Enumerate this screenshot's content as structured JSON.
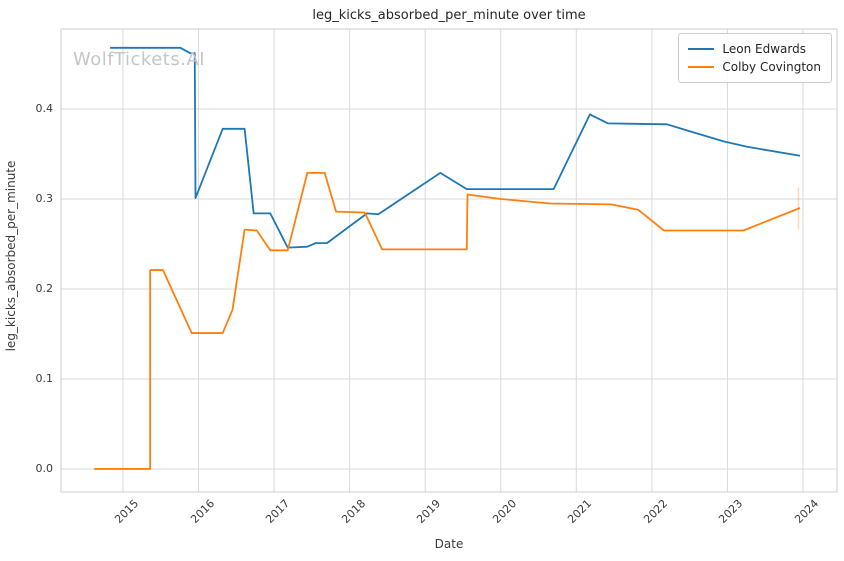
{
  "figure": {
    "title": "leg_kicks_absorbed_per_minute over time",
    "watermark": "WolfTickets.AI",
    "xlabel": "Date",
    "ylabel": "leg_kicks_absorbed_per_minute"
  },
  "legend": {
    "position": "upper right",
    "items": [
      {
        "label": "Leon Edwards",
        "color": "#1f77b4"
      },
      {
        "label": "Colby Covington",
        "color": "#ff7f0e"
      }
    ]
  },
  "style": {
    "background": "#ffffff",
    "grid_color": "#d9d9d9",
    "spine_color": "#cccccc",
    "text_color": "#3a3a3a",
    "title_color": "#262626",
    "watermark_color": "#c6c6c6",
    "line_width": 1.8
  },
  "chart_data": {
    "type": "line",
    "title": "leg_kicks_absorbed_per_minute over time",
    "xlabel": "Date",
    "ylabel": "leg_kicks_absorbed_per_minute",
    "grid": true,
    "legend_position": "upper right",
    "xlim": [
      2014.18,
      2024.45
    ],
    "ylim": [
      -0.0256,
      0.4889
    ],
    "x_ticks": [
      2015,
      2016,
      2017,
      2018,
      2019,
      2020,
      2021,
      2022,
      2023,
      2024
    ],
    "x_tick_labels": [
      "2015",
      "2016",
      "2017",
      "2018",
      "2019",
      "2020",
      "2021",
      "2022",
      "2023",
      "2024"
    ],
    "y_ticks": [
      0.0,
      0.1,
      0.2,
      0.3,
      0.4
    ],
    "y_tick_labels": [
      "0.0",
      "0.1",
      "0.2",
      "0.3",
      "0.4"
    ],
    "series": [
      {
        "name": "Leon Edwards",
        "color": "#1f77b4",
        "points": [
          [
            2014.83,
            0.468
          ],
          [
            2015.76,
            0.468
          ],
          [
            2015.89,
            0.462
          ],
          [
            2015.95,
            0.462
          ],
          [
            2015.96,
            0.301
          ],
          [
            2016.32,
            0.378
          ],
          [
            2016.61,
            0.378
          ],
          [
            2016.73,
            0.284
          ],
          [
            2016.95,
            0.284
          ],
          [
            2017.18,
            0.246
          ],
          [
            2017.44,
            0.247
          ],
          [
            2017.55,
            0.251
          ],
          [
            2017.7,
            0.251
          ],
          [
            2018.23,
            0.284
          ],
          [
            2018.38,
            0.283
          ],
          [
            2019.2,
            0.329
          ],
          [
            2019.55,
            0.311
          ],
          [
            2020.7,
            0.311
          ],
          [
            2021.18,
            0.394
          ],
          [
            2021.42,
            0.384
          ],
          [
            2022.2,
            0.383
          ],
          [
            2022.55,
            0.374
          ],
          [
            2022.95,
            0.364
          ],
          [
            2023.26,
            0.358
          ],
          [
            2023.96,
            0.348
          ]
        ]
      },
      {
        "name": "Colby Covington",
        "color": "#ff7f0e",
        "points": [
          [
            2014.62,
            0.0
          ],
          [
            2015.36,
            0.0
          ],
          [
            2015.36,
            0.221
          ],
          [
            2015.53,
            0.221
          ],
          [
            2015.91,
            0.151
          ],
          [
            2016.32,
            0.151
          ],
          [
            2016.45,
            0.177
          ],
          [
            2016.61,
            0.266
          ],
          [
            2016.77,
            0.265
          ],
          [
            2016.95,
            0.243
          ],
          [
            2017.18,
            0.243
          ],
          [
            2017.44,
            0.329
          ],
          [
            2017.67,
            0.329
          ],
          [
            2017.82,
            0.286
          ],
          [
            2018.2,
            0.285
          ],
          [
            2018.43,
            0.244
          ],
          [
            2019.55,
            0.244
          ],
          [
            2019.56,
            0.305
          ],
          [
            2020.0,
            0.3
          ],
          [
            2020.65,
            0.295
          ],
          [
            2021.46,
            0.294
          ],
          [
            2021.82,
            0.288
          ],
          [
            2022.16,
            0.265
          ],
          [
            2023.21,
            0.265
          ],
          [
            2023.96,
            0.29
          ]
        ]
      }
    ],
    "annotations": [
      {
        "type": "vertical-segment",
        "x": 2023.94,
        "y_from": 0.266,
        "y_to": 0.313,
        "color": "#ff7f0e",
        "opacity": 0.3
      }
    ]
  }
}
